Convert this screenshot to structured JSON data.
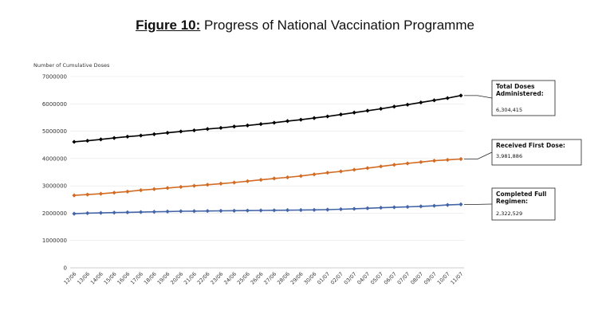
{
  "figure": {
    "title_lead": "Figure 10:",
    "title_rest": " Progress of National Vaccination Programme"
  },
  "chart_data": {
    "type": "line",
    "title": "",
    "xlabel": "",
    "ylabel": "Number of Cumulative Doses",
    "ylim": [
      0,
      7000000
    ],
    "yticks": [
      "7000000",
      "6000000",
      "5000000",
      "4000000",
      "3000000",
      "2000000",
      "1000000",
      "0"
    ],
    "grid": true,
    "categories": [
      "12/06",
      "13/06",
      "14/06",
      "15/06",
      "16/06",
      "17/06",
      "18/06",
      "19/06",
      "20/06",
      "21/06",
      "22/06",
      "23/06",
      "24/06",
      "25/06",
      "26/06",
      "27/06",
      "28/06",
      "29/06",
      "30/06",
      "01/07",
      "02/07",
      "03/07",
      "04/07",
      "05/07",
      "06/07",
      "07/07",
      "08/07",
      "09/07",
      "10/07",
      "11/07"
    ],
    "series": [
      {
        "color": "#000000",
        "values": [
          4610000,
          4650000,
          4700000,
          4750000,
          4800000,
          4840000,
          4890000,
          4940000,
          4990000,
          5030000,
          5080000,
          5120000,
          5170000,
          5210000,
          5260000,
          5310000,
          5370000,
          5420000,
          5480000,
          5540000,
          5610000,
          5680000,
          5750000,
          5820000,
          5900000,
          5970000,
          6050000,
          6130000,
          6210000,
          6304415
        ]
      },
      {
        "color": "#d26b23",
        "values": [
          2650000,
          2680000,
          2710000,
          2750000,
          2790000,
          2840000,
          2880000,
          2920000,
          2960000,
          3000000,
          3040000,
          3080000,
          3120000,
          3170000,
          3220000,
          3270000,
          3310000,
          3360000,
          3420000,
          3480000,
          3530000,
          3590000,
          3650000,
          3710000,
          3770000,
          3820000,
          3870000,
          3920000,
          3950000,
          3981886
        ]
      },
      {
        "color": "#4365a8",
        "values": [
          1980000,
          2000000,
          2010000,
          2020000,
          2030000,
          2040000,
          2050000,
          2060000,
          2070000,
          2075000,
          2080000,
          2085000,
          2090000,
          2095000,
          2100000,
          2105000,
          2110000,
          2115000,
          2120000,
          2130000,
          2145000,
          2160000,
          2180000,
          2200000,
          2215000,
          2230000,
          2250000,
          2270000,
          2300000,
          2322529
        ]
      }
    ],
    "callouts": [
      {
        "title": "Total Doses Administered:",
        "value": "6,304,415"
      },
      {
        "title": "Received First Dose:",
        "value": "3,981,886"
      },
      {
        "title": "Completed Full Regimen:",
        "value": "2,322,529"
      }
    ]
  }
}
